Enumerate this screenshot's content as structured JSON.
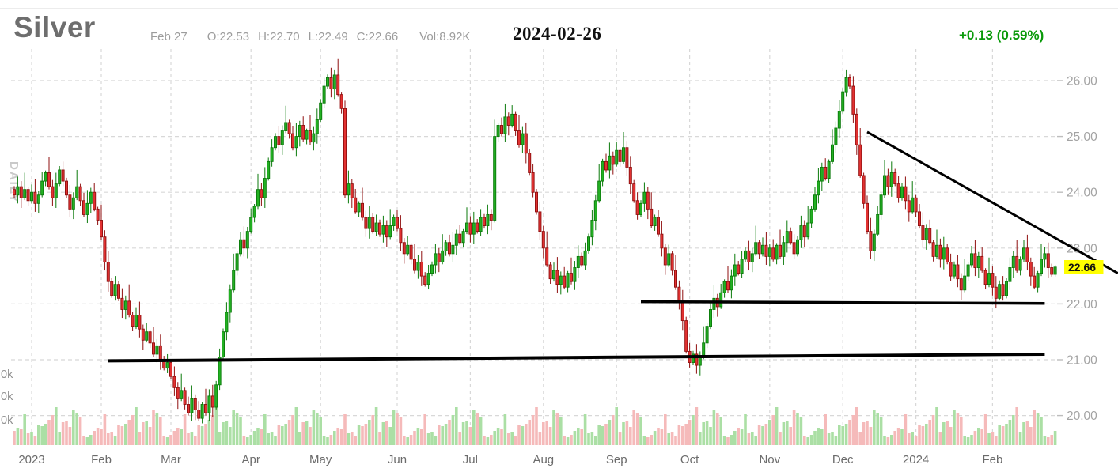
{
  "header": {
    "title": "Silver",
    "bar_date": "Feb 27",
    "open_label": "O:22.53",
    "high_label": "H:22.70",
    "low_label": "L:22.49",
    "close_label": "C:22.66",
    "volume_label": "Vol:8.92K",
    "chart_date": "2024-02-26",
    "change_label": "+0.13 (0.59%)"
  },
  "left_axis": {
    "timeframe_label": "DAILY",
    "volume_labels": [
      "0k",
      "0k",
      "0k"
    ]
  },
  "price_axis": {
    "labels": [
      "26.00",
      "25.00",
      "24.00",
      "23.00",
      "22.00",
      "21.00",
      "20.00"
    ],
    "current_price_tag": "22.66"
  },
  "time_axis": {
    "labels": [
      {
        "label": "2023",
        "index": 5
      },
      {
        "label": "Feb",
        "index": 25
      },
      {
        "label": "Mar",
        "index": 45
      },
      {
        "label": "Apr",
        "index": 68
      },
      {
        "label": "May",
        "index": 88
      },
      {
        "label": "Jun",
        "index": 110
      },
      {
        "label": "Jul",
        "index": 131
      },
      {
        "label": "Aug",
        "index": 152
      },
      {
        "label": "Sep",
        "index": 173
      },
      {
        "label": "Oct",
        "index": 194
      },
      {
        "label": "Nov",
        "index": 217
      },
      {
        "label": "Dec",
        "index": 238
      },
      {
        "label": "2024",
        "index": 259
      },
      {
        "label": "Feb",
        "index": 281
      }
    ]
  },
  "colors": {
    "up_fill": "#23b123",
    "up_border": "#0b7a0b",
    "down_fill": "#e23232",
    "down_border": "#8f0f0f",
    "vol_up": "#abdfa5",
    "vol_down": "#f5baba",
    "grid": "#d8d8d8",
    "axis_text": "#a3a3a3",
    "month_text": "#6b6b6b",
    "vol_axis_text": "#8f8f8f",
    "watermark": "#c9c9c9",
    "trendline": "#000000",
    "tag_bg": "#ffff00",
    "tag_text": "#111111",
    "change_green": "#0a9a0a",
    "title_gray": "#6e6e6e",
    "info_gray": "#9c9c9c"
  },
  "chart_data": {
    "type": "candlestick",
    "title": "Silver",
    "timeframe": "daily",
    "ylim": [
      19.6,
      26.45
    ],
    "price_gridlines": [
      26.0,
      25.0,
      24.0,
      23.0,
      22.0,
      21.0,
      20.0
    ],
    "first_open": 24.05,
    "closes": [
      23.95,
      24.1,
      23.9,
      24.05,
      23.85,
      24.0,
      23.8,
      23.95,
      24.2,
      24.35,
      24.1,
      23.9,
      24.15,
      24.4,
      24.2,
      23.95,
      23.7,
      23.9,
      24.1,
      23.85,
      23.6,
      23.8,
      24.0,
      23.7,
      23.5,
      23.2,
      22.75,
      22.4,
      22.15,
      22.35,
      22.1,
      21.9,
      22.05,
      21.8,
      21.6,
      21.8,
      21.55,
      21.35,
      21.5,
      21.3,
      21.1,
      21.25,
      21.0,
      20.85,
      20.95,
      20.7,
      20.5,
      20.3,
      20.45,
      20.2,
      20.05,
      20.3,
      20.1,
      19.95,
      20.2,
      20.05,
      20.35,
      20.15,
      20.55,
      21.05,
      21.5,
      21.85,
      22.25,
      22.6,
      22.9,
      23.15,
      23.0,
      23.3,
      23.55,
      23.75,
      24.05,
      23.9,
      24.25,
      24.55,
      24.8,
      25.0,
      24.85,
      25.1,
      25.25,
      25.05,
      24.8,
      25.0,
      25.2,
      24.95,
      25.1,
      24.9,
      25.05,
      25.3,
      25.6,
      25.9,
      26.05,
      25.85,
      26.1,
      25.75,
      25.5,
      23.95,
      24.15,
      23.9,
      23.65,
      23.8,
      23.55,
      23.35,
      23.55,
      23.3,
      23.45,
      23.25,
      23.4,
      23.2,
      23.4,
      23.55,
      23.35,
      23.1,
      22.9,
      23.05,
      22.8,
      22.6,
      22.75,
      22.5,
      22.35,
      22.55,
      22.7,
      22.9,
      22.75,
      22.95,
      23.1,
      22.9,
      23.05,
      23.25,
      23.1,
      23.3,
      23.45,
      23.25,
      23.45,
      23.3,
      23.55,
      23.4,
      23.6,
      23.5,
      25.0,
      25.2,
      25.05,
      25.35,
      25.2,
      25.4,
      25.1,
      24.85,
      25.05,
      24.7,
      24.35,
      24.0,
      23.65,
      23.3,
      23.0,
      22.7,
      22.45,
      22.6,
      22.35,
      22.5,
      22.3,
      22.55,
      22.4,
      22.65,
      22.85,
      22.7,
      22.95,
      23.2,
      23.5,
      23.85,
      24.2,
      24.55,
      24.4,
      24.65,
      24.5,
      24.75,
      24.55,
      24.8,
      24.45,
      24.15,
      23.85,
      23.6,
      23.8,
      24.0,
      23.7,
      23.4,
      23.55,
      23.25,
      23.0,
      22.7,
      22.9,
      22.6,
      22.3,
      22.05,
      21.7,
      21.15,
      20.95,
      21.1,
      20.9,
      21.05,
      21.3,
      21.6,
      21.9,
      22.1,
      21.95,
      22.2,
      22.4,
      22.25,
      22.5,
      22.7,
      22.55,
      22.8,
      22.95,
      22.75,
      22.9,
      23.1,
      22.9,
      23.05,
      22.85,
      23.0,
      22.8,
      23.05,
      22.85,
      23.1,
      23.3,
      23.1,
      22.9,
      23.15,
      23.4,
      23.2,
      23.45,
      23.7,
      23.95,
      24.2,
      24.45,
      24.25,
      24.55,
      24.85,
      25.15,
      25.45,
      25.8,
      26.05,
      25.9,
      25.4,
      24.85,
      24.3,
      23.8,
      23.3,
      22.95,
      23.25,
      23.6,
      23.95,
      24.3,
      24.1,
      24.35,
      24.15,
      23.9,
      24.1,
      23.85,
      23.65,
      23.9,
      23.65,
      23.4,
      23.15,
      23.35,
      23.1,
      22.85,
      23.05,
      22.8,
      23.0,
      22.75,
      22.5,
      22.7,
      22.45,
      22.25,
      22.5,
      22.7,
      22.9,
      22.65,
      22.85,
      22.6,
      22.35,
      22.55,
      22.3,
      22.1,
      22.35,
      22.15,
      22.4,
      22.65,
      22.85,
      22.6,
      22.8,
      23.0,
      22.75,
      22.5,
      22.3,
      22.55,
      22.8,
      22.9,
      22.65,
      22.53,
      22.66
    ],
    "last_candle": {
      "open": 22.53,
      "high": 22.7,
      "low": 22.49,
      "close": 22.66,
      "volume": "8.92K"
    },
    "wick_up": [
      0.06,
      0.18,
      0.1,
      0.3,
      0.05,
      0.14,
      0.24,
      0.08,
      0.16,
      0.04,
      0.28,
      0.12,
      0.2,
      0.07,
      0.15
    ],
    "wick_down": [
      0.12,
      0.05,
      0.22,
      0.08,
      0.15,
      0.32,
      0.06,
      0.18,
      0.1,
      0.26,
      0.04,
      0.14,
      0.21,
      0.09,
      0.16
    ],
    "volume_pattern": [
      18,
      32,
      12,
      26,
      44,
      15,
      29,
      22,
      38,
      10,
      24,
      41,
      16,
      30,
      20,
      48,
      13,
      27,
      35,
      11,
      23,
      39,
      17
    ],
    "trendlines": [
      {
        "name": "support-lower",
        "from": {
          "index": 27,
          "price": 20.98
        },
        "to": {
          "index": 296,
          "price": 21.1
        },
        "width": 4
      },
      {
        "name": "support-upper",
        "from": {
          "index": 180,
          "price": 22.04
        },
        "to": {
          "index": 296,
          "price": 22.01
        },
        "width": 3.5
      },
      {
        "name": "descending-resistance",
        "from": {
          "index": 245,
          "price": 25.08
        },
        "to": {
          "index": 317,
          "price": 22.55
        },
        "width": 3
      }
    ]
  }
}
